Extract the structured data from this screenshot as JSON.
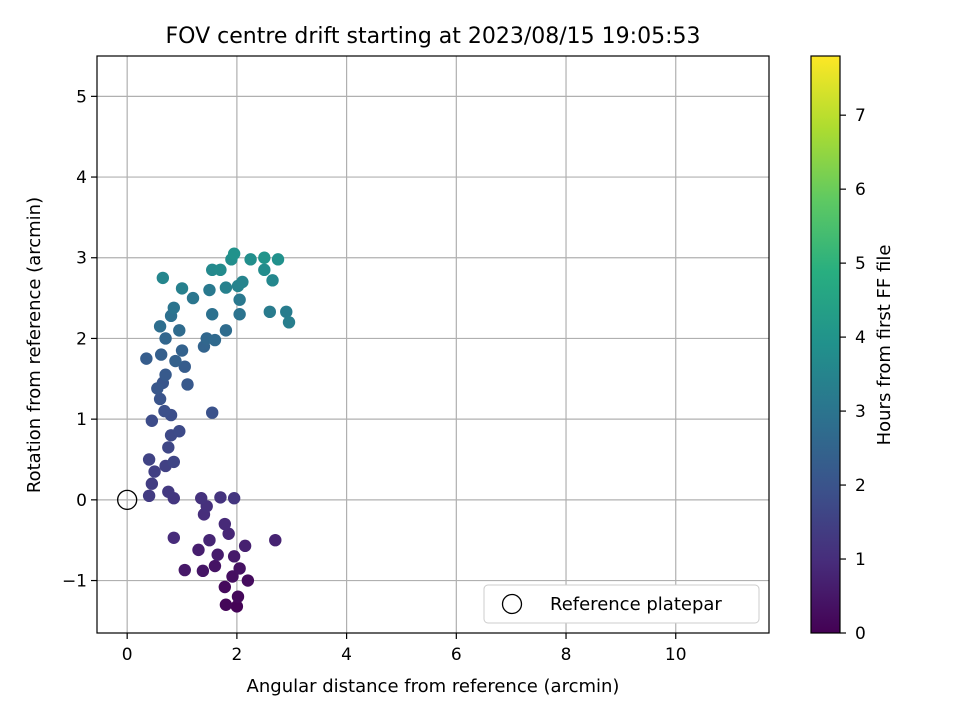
{
  "chart_data": {
    "type": "scatter",
    "title": "FOV centre drift starting at 2023/08/15 19:05:53",
    "xlabel": "Angular distance from reference (arcmin)",
    "ylabel": "Rotation from reference (arcmin)",
    "xlim": [
      -0.55,
      11.7
    ],
    "ylim": [
      -1.65,
      5.5
    ],
    "xticks": [
      0,
      2,
      4,
      6,
      8,
      10
    ],
    "xtick_labels": [
      "0",
      "2",
      "4",
      "6",
      "8",
      "10"
    ],
    "yticks": [
      -1,
      0,
      1,
      2,
      3,
      4,
      5
    ],
    "ytick_labels": [
      "−1",
      "0",
      "1",
      "2",
      "3",
      "4",
      "5"
    ],
    "grid": true,
    "colormap": "viridis",
    "colorbar": {
      "label": "Hours from first FF file",
      "min": 0,
      "max": 7.8,
      "ticks": [
        0,
        1,
        2,
        3,
        4,
        5,
        6,
        7
      ],
      "tick_labels": [
        "0",
        "1",
        "2",
        "3",
        "4",
        "5",
        "6",
        "7"
      ]
    },
    "reference_marker": {
      "x": 0,
      "y": 0,
      "legend_label": "Reference platepar"
    },
    "legend_position": "lower-right",
    "series": [
      {
        "color_by": "hours",
        "points": [
          [
            2.0,
            -1.32,
            0.05
          ],
          [
            1.8,
            -1.3,
            0.1
          ],
          [
            2.02,
            -1.2,
            0.15
          ],
          [
            1.78,
            -1.08,
            0.2
          ],
          [
            2.2,
            -1.0,
            0.25
          ],
          [
            1.92,
            -0.95,
            0.3
          ],
          [
            2.05,
            -0.85,
            0.35
          ],
          [
            1.6,
            -0.82,
            0.4
          ],
          [
            1.38,
            -0.88,
            0.45
          ],
          [
            1.05,
            -0.87,
            0.5
          ],
          [
            1.95,
            -0.7,
            0.55
          ],
          [
            1.65,
            -0.68,
            0.6
          ],
          [
            1.3,
            -0.62,
            0.65
          ],
          [
            2.15,
            -0.57,
            0.7
          ],
          [
            2.7,
            -0.5,
            0.75
          ],
          [
            1.5,
            -0.5,
            0.8
          ],
          [
            1.85,
            -0.42,
            0.85
          ],
          [
            1.78,
            -0.3,
            0.9
          ],
          [
            0.85,
            -0.47,
            0.95
          ],
          [
            1.4,
            -0.18,
            1.0
          ],
          [
            1.45,
            -0.08,
            1.05
          ],
          [
            1.35,
            0.02,
            1.1
          ],
          [
            1.7,
            0.03,
            1.15
          ],
          [
            1.95,
            0.02,
            1.2
          ],
          [
            0.85,
            0.02,
            1.25
          ],
          [
            0.75,
            0.1,
            1.3
          ],
          [
            0.4,
            0.05,
            1.35
          ],
          [
            0.45,
            0.2,
            1.4
          ],
          [
            0.5,
            0.35,
            1.45
          ],
          [
            0.7,
            0.42,
            1.5
          ],
          [
            0.4,
            0.5,
            1.55
          ],
          [
            0.85,
            0.47,
            1.6
          ],
          [
            0.75,
            0.65,
            1.65
          ],
          [
            0.8,
            0.8,
            1.7
          ],
          [
            0.95,
            0.85,
            1.75
          ],
          [
            0.45,
            0.98,
            1.8
          ],
          [
            0.8,
            1.05,
            1.85
          ],
          [
            0.68,
            1.1,
            1.9
          ],
          [
            1.55,
            1.08,
            1.95
          ],
          [
            0.6,
            1.25,
            2.0
          ],
          [
            0.65,
            1.45,
            2.05
          ],
          [
            0.55,
            1.38,
            2.1
          ],
          [
            1.1,
            1.43,
            2.15
          ],
          [
            0.7,
            1.55,
            2.2
          ],
          [
            1.05,
            1.65,
            2.25
          ],
          [
            0.35,
            1.75,
            2.3
          ],
          [
            0.62,
            1.8,
            2.35
          ],
          [
            0.88,
            1.72,
            2.4
          ],
          [
            1.0,
            1.85,
            2.45
          ],
          [
            1.4,
            1.9,
            2.5
          ],
          [
            0.7,
            2.0,
            2.55
          ],
          [
            1.45,
            2.0,
            2.6
          ],
          [
            1.6,
            1.98,
            2.65
          ],
          [
            0.95,
            2.1,
            2.7
          ],
          [
            1.8,
            2.1,
            2.75
          ],
          [
            0.6,
            2.15,
            2.8
          ],
          [
            0.8,
            2.28,
            2.85
          ],
          [
            1.55,
            2.3,
            2.9
          ],
          [
            2.05,
            2.3,
            2.95
          ],
          [
            0.85,
            2.38,
            3.0
          ],
          [
            1.2,
            2.5,
            3.05
          ],
          [
            2.05,
            2.48,
            3.1
          ],
          [
            1.5,
            2.6,
            3.15
          ],
          [
            2.6,
            2.33,
            3.2
          ],
          [
            2.9,
            2.33,
            3.25
          ],
          [
            2.95,
            2.2,
            3.3
          ],
          [
            1.0,
            2.62,
            3.35
          ],
          [
            1.8,
            2.63,
            3.4
          ],
          [
            2.02,
            2.65,
            3.45
          ],
          [
            2.1,
            2.7,
            3.5
          ],
          [
            0.65,
            2.75,
            3.55
          ],
          [
            2.65,
            2.72,
            3.6
          ],
          [
            1.55,
            2.85,
            3.65
          ],
          [
            1.7,
            2.85,
            3.7
          ],
          [
            2.5,
            2.85,
            3.75
          ],
          [
            1.9,
            2.98,
            3.8
          ],
          [
            2.25,
            2.98,
            3.85
          ],
          [
            2.75,
            2.98,
            3.9
          ],
          [
            1.95,
            3.05,
            3.95
          ],
          [
            2.5,
            3.0,
            4.0
          ]
        ]
      }
    ]
  }
}
